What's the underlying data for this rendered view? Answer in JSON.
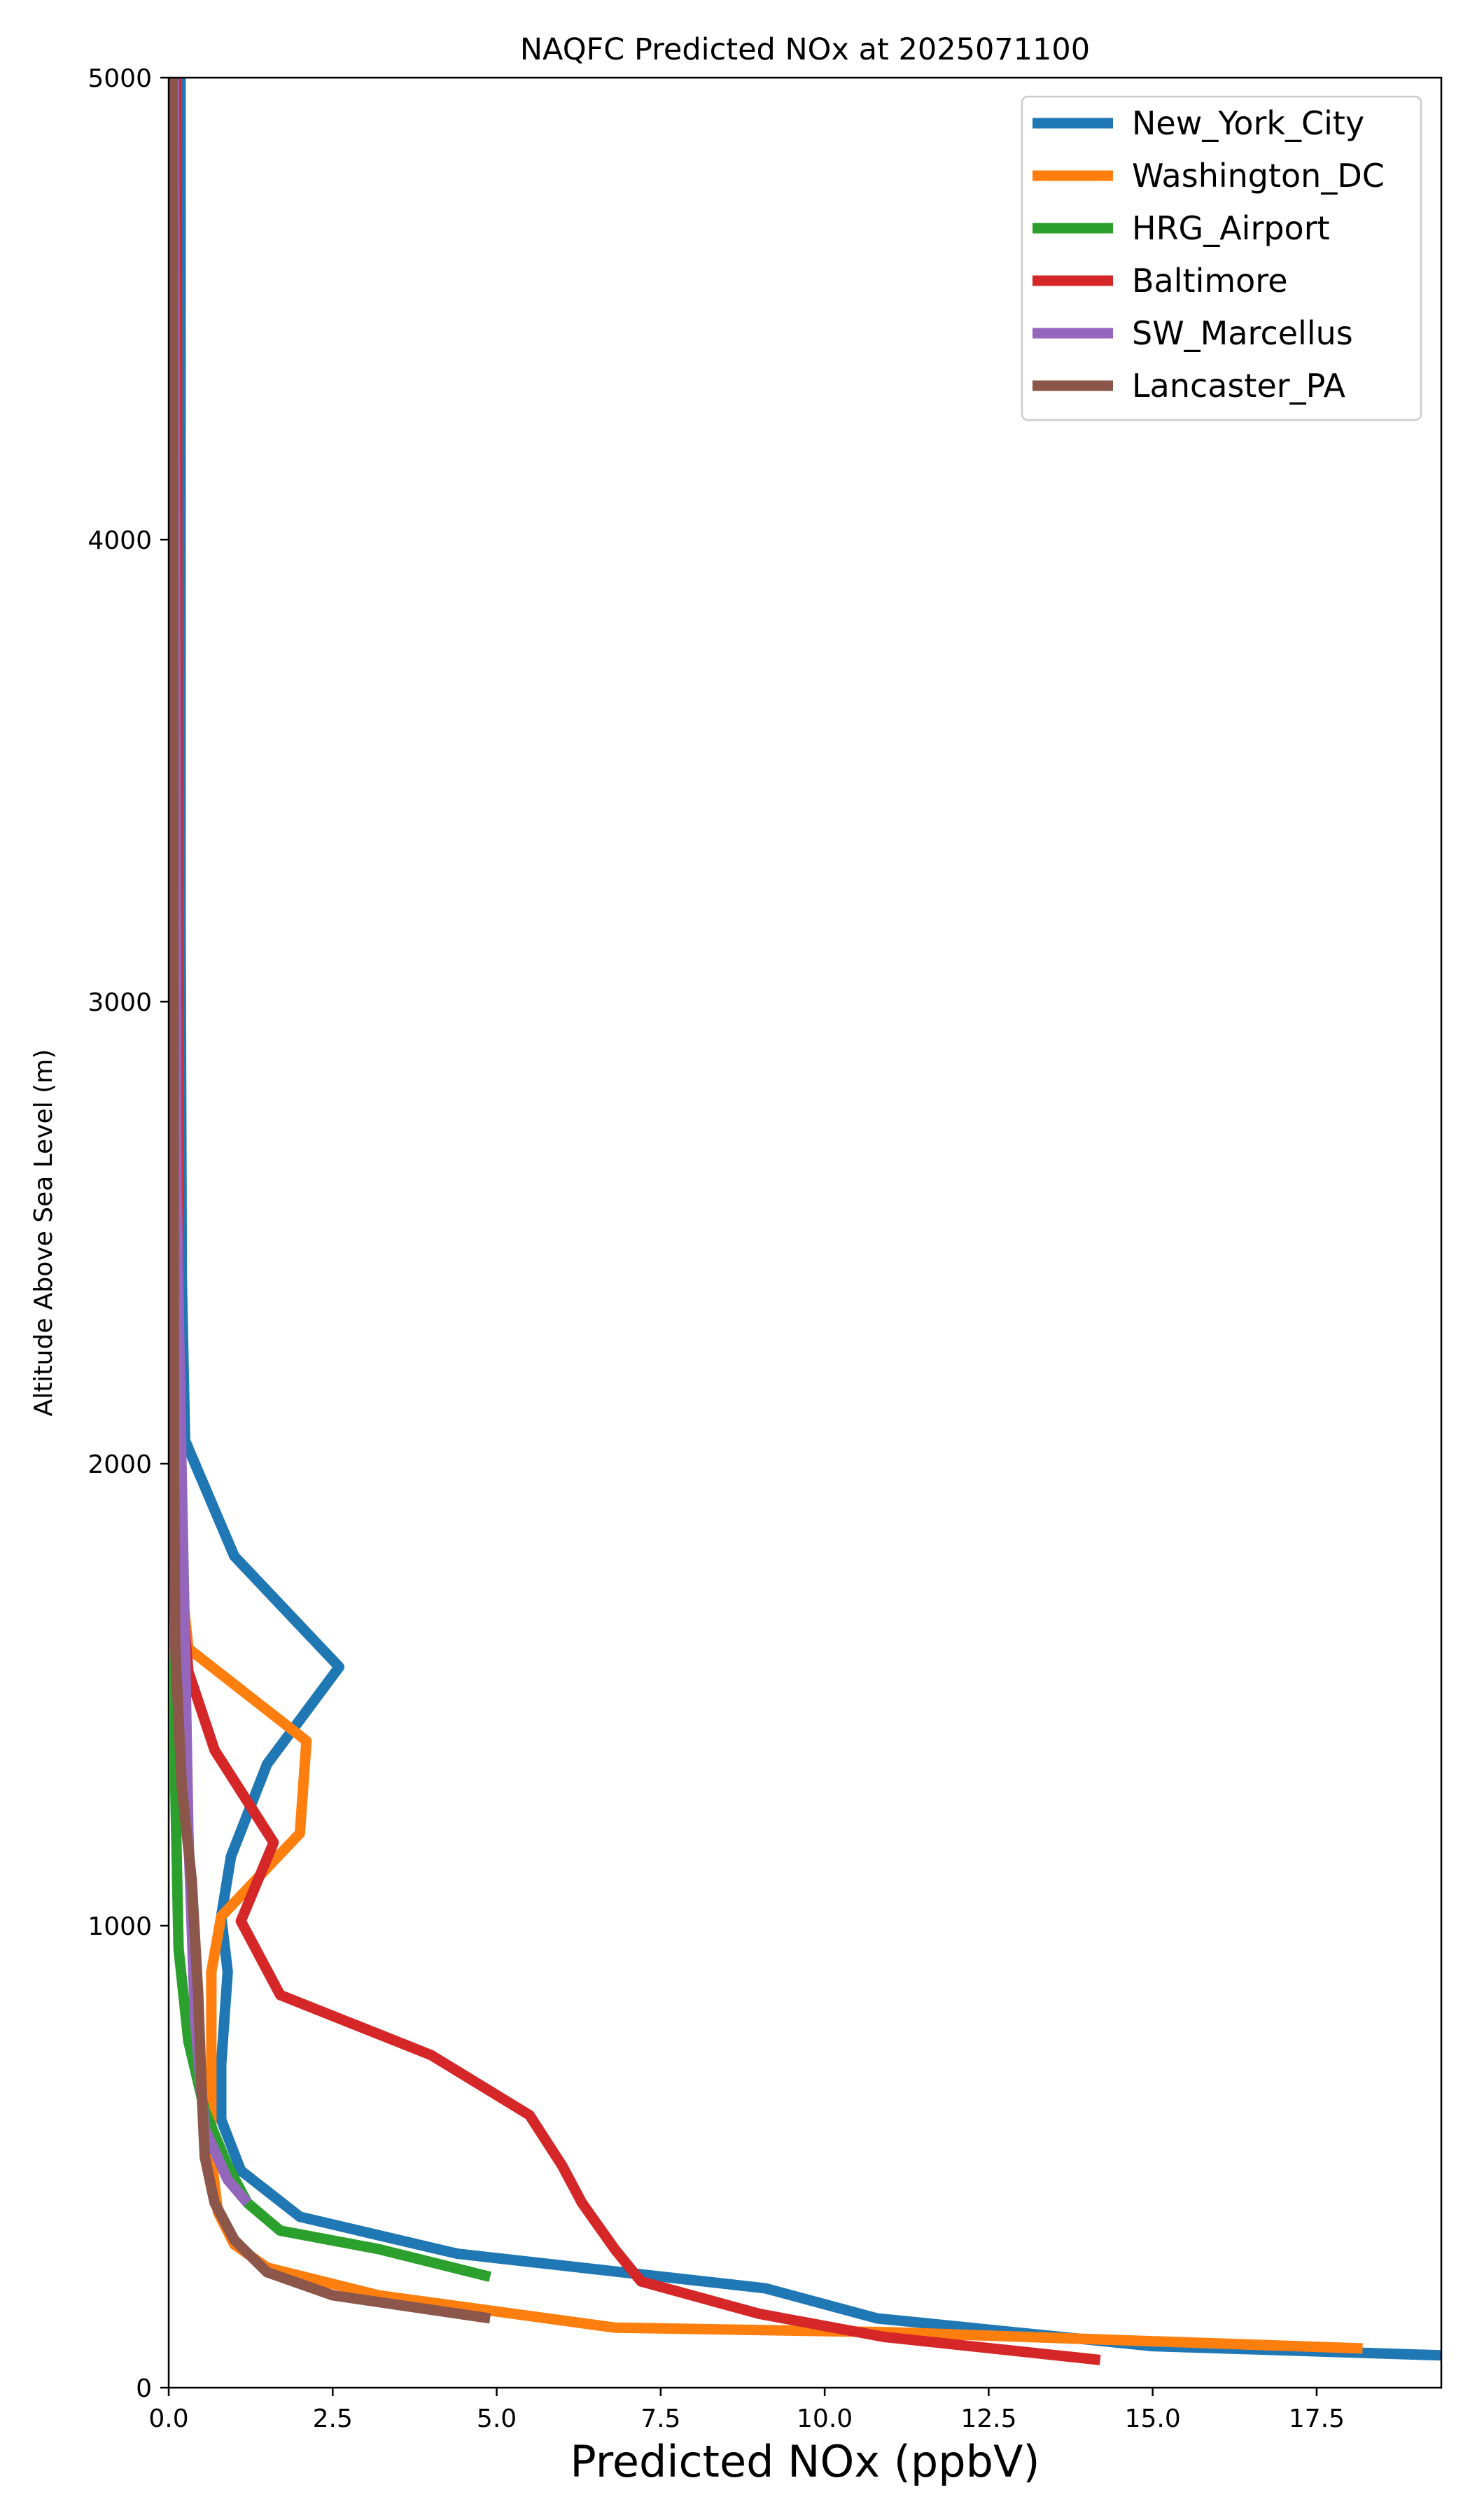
{
  "chart_data": {
    "type": "line",
    "title": "NAQFC Predicted NOx at 2025071100",
    "xlabel": "Predicted NOx (ppbV)",
    "ylabel": "Altitude Above Sea Level (m)",
    "xlim": [
      0,
      19.4
    ],
    "ylim": [
      0,
      5000
    ],
    "xticks": [
      "0.0",
      "2.5",
      "5.0",
      "7.5",
      "10.0",
      "12.5",
      "15.0",
      "17.5"
    ],
    "yticks": [
      "0",
      "1000",
      "2000",
      "3000",
      "4000",
      "5000"
    ],
    "grid": false,
    "legend": "top-right",
    "series": [
      {
        "name": "New_York_City",
        "color": "#1f77b4",
        "points": [
          [
            19.4,
            70
          ],
          [
            15.0,
            90
          ],
          [
            10.8,
            150
          ],
          [
            9.1,
            215
          ],
          [
            4.4,
            290
          ],
          [
            2.0,
            370
          ],
          [
            1.1,
            470
          ],
          [
            0.8,
            580
          ],
          [
            0.8,
            700
          ],
          [
            0.9,
            900
          ],
          [
            0.8,
            1020
          ],
          [
            0.95,
            1150
          ],
          [
            1.5,
            1350
          ],
          [
            2.6,
            1560
          ],
          [
            1.0,
            1800
          ],
          [
            0.25,
            2050
          ],
          [
            0.2,
            2400
          ],
          [
            0.18,
            3200
          ],
          [
            0.18,
            5000
          ]
        ]
      },
      {
        "name": "Washington_DC",
        "color": "#ff7f0e",
        "points": [
          [
            18.2,
            85
          ],
          [
            11.0,
            120
          ],
          [
            6.8,
            130
          ],
          [
            3.2,
            200
          ],
          [
            1.5,
            260
          ],
          [
            1.0,
            310
          ],
          [
            0.75,
            380
          ],
          [
            0.65,
            500
          ],
          [
            0.65,
            700
          ],
          [
            0.65,
            900
          ],
          [
            0.8,
            1020
          ],
          [
            2.0,
            1200
          ],
          [
            2.1,
            1400
          ],
          [
            0.3,
            1600
          ],
          [
            0.15,
            1800
          ],
          [
            0.12,
            5000
          ]
        ]
      },
      {
        "name": "HRG_Airport",
        "color": "#2ca02c",
        "points": [
          [
            4.9,
            240
          ],
          [
            3.2,
            300
          ],
          [
            1.7,
            340
          ],
          [
            1.2,
            400
          ],
          [
            0.9,
            480
          ],
          [
            0.55,
            600
          ],
          [
            0.3,
            750
          ],
          [
            0.15,
            950
          ],
          [
            0.1,
            1300
          ],
          [
            0.1,
            5000
          ]
        ]
      },
      {
        "name": "Baltimore",
        "color": "#d62728",
        "points": [
          [
            14.2,
            60
          ],
          [
            10.9,
            110
          ],
          [
            9.0,
            160
          ],
          [
            7.2,
            230
          ],
          [
            6.8,
            300
          ],
          [
            6.3,
            400
          ],
          [
            6.0,
            480
          ],
          [
            5.5,
            590
          ],
          [
            4.0,
            720
          ],
          [
            1.7,
            850
          ],
          [
            1.1,
            1010
          ],
          [
            1.6,
            1180
          ],
          [
            0.7,
            1380
          ],
          [
            0.3,
            1550
          ],
          [
            0.15,
            1800
          ],
          [
            0.12,
            5000
          ]
        ]
      },
      {
        "name": "SW_Marcellus",
        "color": "#9467bd",
        "points": [
          [
            1.2,
            400
          ],
          [
            0.9,
            450
          ],
          [
            0.55,
            560
          ],
          [
            0.4,
            800
          ],
          [
            0.3,
            1200
          ],
          [
            0.25,
            1600
          ],
          [
            0.18,
            2100
          ],
          [
            0.12,
            2600
          ],
          [
            0.08,
            5000
          ]
        ]
      },
      {
        "name": "Lancaster_PA",
        "color": "#8c564b",
        "points": [
          [
            4.9,
            150
          ],
          [
            2.5,
            200
          ],
          [
            1.5,
            250
          ],
          [
            1.0,
            320
          ],
          [
            0.7,
            400
          ],
          [
            0.55,
            500
          ],
          [
            0.5,
            650
          ],
          [
            0.45,
            850
          ],
          [
            0.35,
            1100
          ],
          [
            0.2,
            1300
          ],
          [
            0.1,
            1600
          ],
          [
            0.08,
            2000
          ],
          [
            0.06,
            5000
          ]
        ]
      }
    ]
  }
}
